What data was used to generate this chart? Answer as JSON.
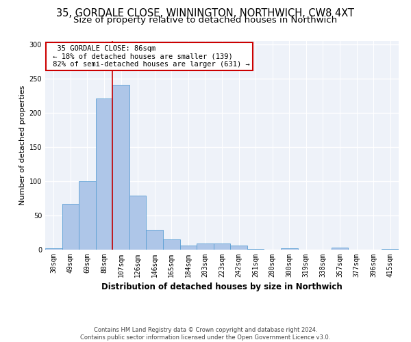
{
  "title1": "35, GORDALE CLOSE, WINNINGTON, NORTHWICH, CW8 4XT",
  "title2": "Size of property relative to detached houses in Northwich",
  "xlabel": "Distribution of detached houses by size in Northwich",
  "ylabel": "Number of detached properties",
  "footnote": "Contains HM Land Registry data © Crown copyright and database right 2024.\nContains public sector information licensed under the Open Government Licence v3.0.",
  "bar_labels": [
    "30sqm",
    "49sqm",
    "69sqm",
    "88sqm",
    "107sqm",
    "126sqm",
    "146sqm",
    "165sqm",
    "184sqm",
    "203sqm",
    "223sqm",
    "242sqm",
    "261sqm",
    "280sqm",
    "300sqm",
    "319sqm",
    "338sqm",
    "357sqm",
    "377sqm",
    "396sqm",
    "415sqm"
  ],
  "bar_values": [
    2,
    67,
    100,
    221,
    241,
    79,
    29,
    15,
    6,
    9,
    9,
    6,
    1,
    0,
    2,
    0,
    0,
    3,
    0,
    0,
    1
  ],
  "bar_color": "#aec6e8",
  "bar_edge_color": "#5a9fd4",
  "vline_x": 3.5,
  "vline_color": "#cc0000",
  "annotation_text": "  35 GORDALE CLOSE: 86sqm  \n ← 18% of detached houses are smaller (139)\n 82% of semi-detached houses are larger (631) →",
  "annotation_box_color": "#ffffff",
  "annotation_box_edge_color": "#cc0000",
  "ylim": [
    0,
    305
  ],
  "yticks": [
    0,
    50,
    100,
    150,
    200,
    250,
    300
  ],
  "background_color": "#eef2f9",
  "grid_color": "#ffffff",
  "title1_fontsize": 10.5,
  "title2_fontsize": 9.5,
  "xlabel_fontsize": 8.5,
  "ylabel_fontsize": 8,
  "tick_fontsize": 7,
  "annotation_fontsize": 7.5,
  "footnote_fontsize": 6
}
